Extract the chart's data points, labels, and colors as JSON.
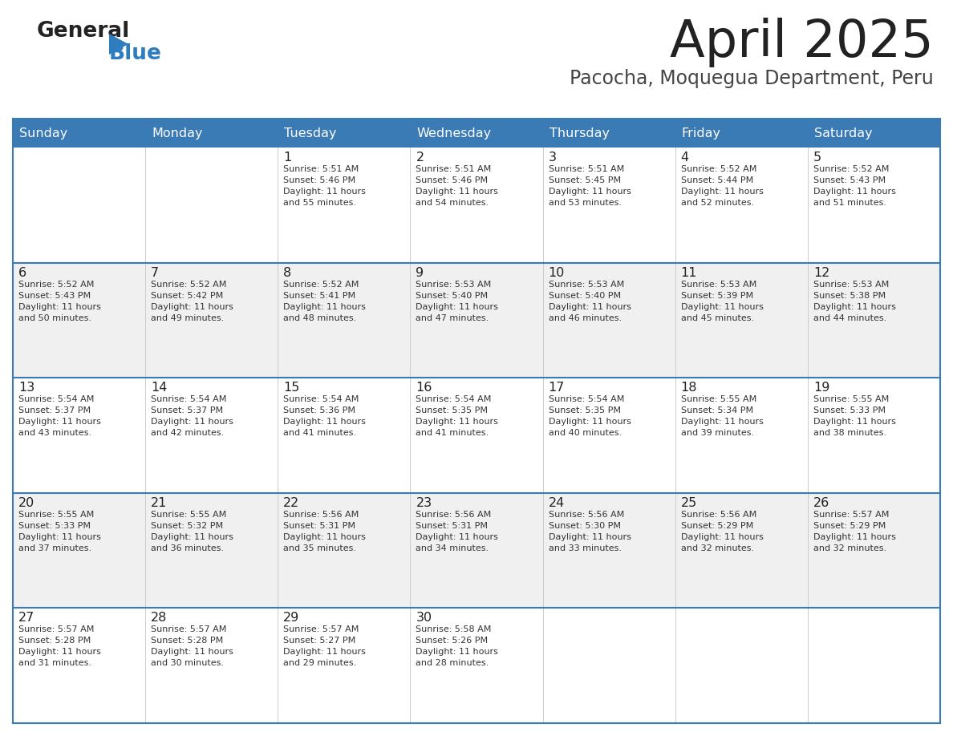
{
  "title": "April 2025",
  "subtitle": "Pacocha, Moquegua Department, Peru",
  "header_text_color": "#ffffff",
  "cell_bg_color": "#ffffff",
  "alt_cell_bg_color": "#f0f0f0",
  "day_header_color": "#3a7ab5",
  "border_color": "#3a7ab5",
  "separator_color": "#3a7ab5",
  "days_of_week": [
    "Sunday",
    "Monday",
    "Tuesday",
    "Wednesday",
    "Thursday",
    "Friday",
    "Saturday"
  ],
  "calendar_data": [
    [
      {
        "day": "",
        "info": ""
      },
      {
        "day": "",
        "info": ""
      },
      {
        "day": "1",
        "info": "Sunrise: 5:51 AM\nSunset: 5:46 PM\nDaylight: 11 hours\nand 55 minutes."
      },
      {
        "day": "2",
        "info": "Sunrise: 5:51 AM\nSunset: 5:46 PM\nDaylight: 11 hours\nand 54 minutes."
      },
      {
        "day": "3",
        "info": "Sunrise: 5:51 AM\nSunset: 5:45 PM\nDaylight: 11 hours\nand 53 minutes."
      },
      {
        "day": "4",
        "info": "Sunrise: 5:52 AM\nSunset: 5:44 PM\nDaylight: 11 hours\nand 52 minutes."
      },
      {
        "day": "5",
        "info": "Sunrise: 5:52 AM\nSunset: 5:43 PM\nDaylight: 11 hours\nand 51 minutes."
      }
    ],
    [
      {
        "day": "6",
        "info": "Sunrise: 5:52 AM\nSunset: 5:43 PM\nDaylight: 11 hours\nand 50 minutes."
      },
      {
        "day": "7",
        "info": "Sunrise: 5:52 AM\nSunset: 5:42 PM\nDaylight: 11 hours\nand 49 minutes."
      },
      {
        "day": "8",
        "info": "Sunrise: 5:52 AM\nSunset: 5:41 PM\nDaylight: 11 hours\nand 48 minutes."
      },
      {
        "day": "9",
        "info": "Sunrise: 5:53 AM\nSunset: 5:40 PM\nDaylight: 11 hours\nand 47 minutes."
      },
      {
        "day": "10",
        "info": "Sunrise: 5:53 AM\nSunset: 5:40 PM\nDaylight: 11 hours\nand 46 minutes."
      },
      {
        "day": "11",
        "info": "Sunrise: 5:53 AM\nSunset: 5:39 PM\nDaylight: 11 hours\nand 45 minutes."
      },
      {
        "day": "12",
        "info": "Sunrise: 5:53 AM\nSunset: 5:38 PM\nDaylight: 11 hours\nand 44 minutes."
      }
    ],
    [
      {
        "day": "13",
        "info": "Sunrise: 5:54 AM\nSunset: 5:37 PM\nDaylight: 11 hours\nand 43 minutes."
      },
      {
        "day": "14",
        "info": "Sunrise: 5:54 AM\nSunset: 5:37 PM\nDaylight: 11 hours\nand 42 minutes."
      },
      {
        "day": "15",
        "info": "Sunrise: 5:54 AM\nSunset: 5:36 PM\nDaylight: 11 hours\nand 41 minutes."
      },
      {
        "day": "16",
        "info": "Sunrise: 5:54 AM\nSunset: 5:35 PM\nDaylight: 11 hours\nand 41 minutes."
      },
      {
        "day": "17",
        "info": "Sunrise: 5:54 AM\nSunset: 5:35 PM\nDaylight: 11 hours\nand 40 minutes."
      },
      {
        "day": "18",
        "info": "Sunrise: 5:55 AM\nSunset: 5:34 PM\nDaylight: 11 hours\nand 39 minutes."
      },
      {
        "day": "19",
        "info": "Sunrise: 5:55 AM\nSunset: 5:33 PM\nDaylight: 11 hours\nand 38 minutes."
      }
    ],
    [
      {
        "day": "20",
        "info": "Sunrise: 5:55 AM\nSunset: 5:33 PM\nDaylight: 11 hours\nand 37 minutes."
      },
      {
        "day": "21",
        "info": "Sunrise: 5:55 AM\nSunset: 5:32 PM\nDaylight: 11 hours\nand 36 minutes."
      },
      {
        "day": "22",
        "info": "Sunrise: 5:56 AM\nSunset: 5:31 PM\nDaylight: 11 hours\nand 35 minutes."
      },
      {
        "day": "23",
        "info": "Sunrise: 5:56 AM\nSunset: 5:31 PM\nDaylight: 11 hours\nand 34 minutes."
      },
      {
        "day": "24",
        "info": "Sunrise: 5:56 AM\nSunset: 5:30 PM\nDaylight: 11 hours\nand 33 minutes."
      },
      {
        "day": "25",
        "info": "Sunrise: 5:56 AM\nSunset: 5:29 PM\nDaylight: 11 hours\nand 32 minutes."
      },
      {
        "day": "26",
        "info": "Sunrise: 5:57 AM\nSunset: 5:29 PM\nDaylight: 11 hours\nand 32 minutes."
      }
    ],
    [
      {
        "day": "27",
        "info": "Sunrise: 5:57 AM\nSunset: 5:28 PM\nDaylight: 11 hours\nand 31 minutes."
      },
      {
        "day": "28",
        "info": "Sunrise: 5:57 AM\nSunset: 5:28 PM\nDaylight: 11 hours\nand 30 minutes."
      },
      {
        "day": "29",
        "info": "Sunrise: 5:57 AM\nSunset: 5:27 PM\nDaylight: 11 hours\nand 29 minutes."
      },
      {
        "day": "30",
        "info": "Sunrise: 5:58 AM\nSunset: 5:26 PM\nDaylight: 11 hours\nand 28 minutes."
      },
      {
        "day": "",
        "info": ""
      },
      {
        "day": "",
        "info": ""
      },
      {
        "day": "",
        "info": ""
      }
    ]
  ],
  "logo_general_color": "#222222",
  "logo_blue_color": "#2e7dbf",
  "logo_triangle_color": "#2e7dbf",
  "title_color": "#222222",
  "subtitle_color": "#444444",
  "day_num_color": "#222222",
  "cell_text_color": "#333333"
}
